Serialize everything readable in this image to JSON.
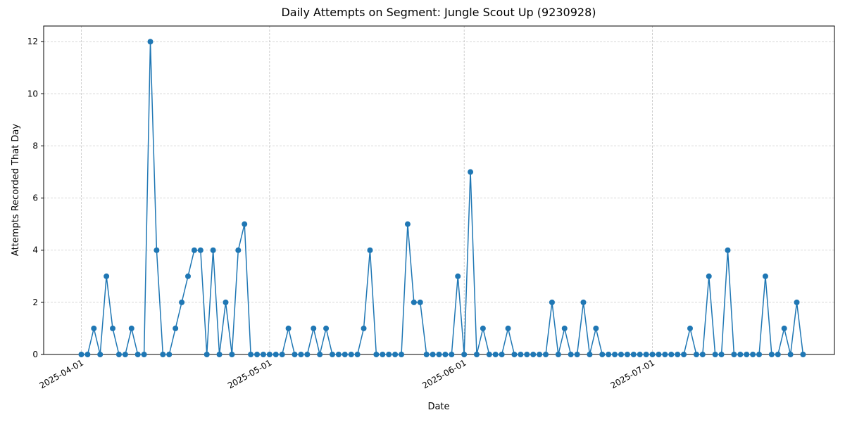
{
  "chart_data": {
    "type": "line",
    "title": "Daily Attempts on Segment: Jungle Scout Up (9230928)",
    "x_label": "Date",
    "y_label": "Attempts Recorded That Day",
    "x": [
      "2025-04-01",
      "2025-04-02",
      "2025-04-03",
      "2025-04-04",
      "2025-04-05",
      "2025-04-06",
      "2025-04-07",
      "2025-04-08",
      "2025-04-09",
      "2025-04-10",
      "2025-04-11",
      "2025-04-12",
      "2025-04-13",
      "2025-04-14",
      "2025-04-15",
      "2025-04-16",
      "2025-04-17",
      "2025-04-18",
      "2025-04-19",
      "2025-04-20",
      "2025-04-21",
      "2025-04-22",
      "2025-04-23",
      "2025-04-24",
      "2025-04-25",
      "2025-04-26",
      "2025-04-27",
      "2025-04-28",
      "2025-04-29",
      "2025-04-30",
      "2025-05-01",
      "2025-05-02",
      "2025-05-03",
      "2025-05-04",
      "2025-05-05",
      "2025-05-06",
      "2025-05-07",
      "2025-05-08",
      "2025-05-09",
      "2025-05-10",
      "2025-05-11",
      "2025-05-12",
      "2025-05-13",
      "2025-05-14",
      "2025-05-15",
      "2025-05-16",
      "2025-05-17",
      "2025-05-18",
      "2025-05-19",
      "2025-05-20",
      "2025-05-21",
      "2025-05-22",
      "2025-05-23",
      "2025-05-24",
      "2025-05-25",
      "2025-05-26",
      "2025-05-27",
      "2025-05-28",
      "2025-05-29",
      "2025-05-30",
      "2025-05-31",
      "2025-06-01",
      "2025-06-02",
      "2025-06-03",
      "2025-06-04",
      "2025-06-05",
      "2025-06-06",
      "2025-06-07",
      "2025-06-08",
      "2025-06-09",
      "2025-06-10",
      "2025-06-11",
      "2025-06-12",
      "2025-06-13",
      "2025-06-14",
      "2025-06-15",
      "2025-06-16",
      "2025-06-17",
      "2025-06-18",
      "2025-06-19",
      "2025-06-20",
      "2025-06-21",
      "2025-06-22",
      "2025-06-23",
      "2025-06-24",
      "2025-06-25",
      "2025-06-26",
      "2025-06-27",
      "2025-06-28",
      "2025-06-29",
      "2025-06-30",
      "2025-07-01",
      "2025-07-02",
      "2025-07-03",
      "2025-07-04",
      "2025-07-05",
      "2025-07-06",
      "2025-07-07",
      "2025-07-08",
      "2025-07-09",
      "2025-07-10",
      "2025-07-11",
      "2025-07-12",
      "2025-07-13",
      "2025-07-14",
      "2025-07-15",
      "2025-07-16",
      "2025-07-17",
      "2025-07-18",
      "2025-07-19",
      "2025-07-20",
      "2025-07-21",
      "2025-07-22",
      "2025-07-23",
      "2025-07-24",
      "2025-07-25"
    ],
    "series": [
      {
        "name": "Attempts",
        "color": "#1f77b4",
        "values": [
          0,
          0,
          1,
          0,
          3,
          1,
          0,
          0,
          1,
          0,
          0,
          12,
          4,
          0,
          0,
          1,
          2,
          3,
          4,
          4,
          0,
          4,
          0,
          2,
          0,
          4,
          5,
          0,
          0,
          0,
          0,
          0,
          0,
          1,
          0,
          0,
          0,
          1,
          0,
          1,
          0,
          0,
          0,
          0,
          0,
          1,
          4,
          0,
          0,
          0,
          0,
          0,
          5,
          2,
          2,
          0,
          0,
          0,
          0,
          0,
          3,
          0,
          7,
          0,
          1,
          0,
          0,
          0,
          1,
          0,
          0,
          0,
          0,
          0,
          0,
          2,
          0,
          1,
          0,
          0,
          2,
          0,
          1,
          0,
          0,
          0,
          0,
          0,
          0,
          0,
          0,
          0,
          0,
          0,
          0,
          0,
          0,
          1,
          0,
          0,
          3,
          0,
          0,
          4,
          0,
          0,
          0,
          0,
          0,
          3,
          0,
          0,
          1,
          0,
          2,
          0
        ]
      }
    ],
    "xlim": [
      "2025-03-26",
      "2025-07-30"
    ],
    "xticks": [
      "2025-04-01",
      "2025-05-01",
      "2025-06-01",
      "2025-07-01"
    ],
    "ylim": [
      0,
      12.6
    ],
    "yticks": [
      0,
      2,
      4,
      6,
      8,
      10,
      12
    ],
    "grid": true
  }
}
